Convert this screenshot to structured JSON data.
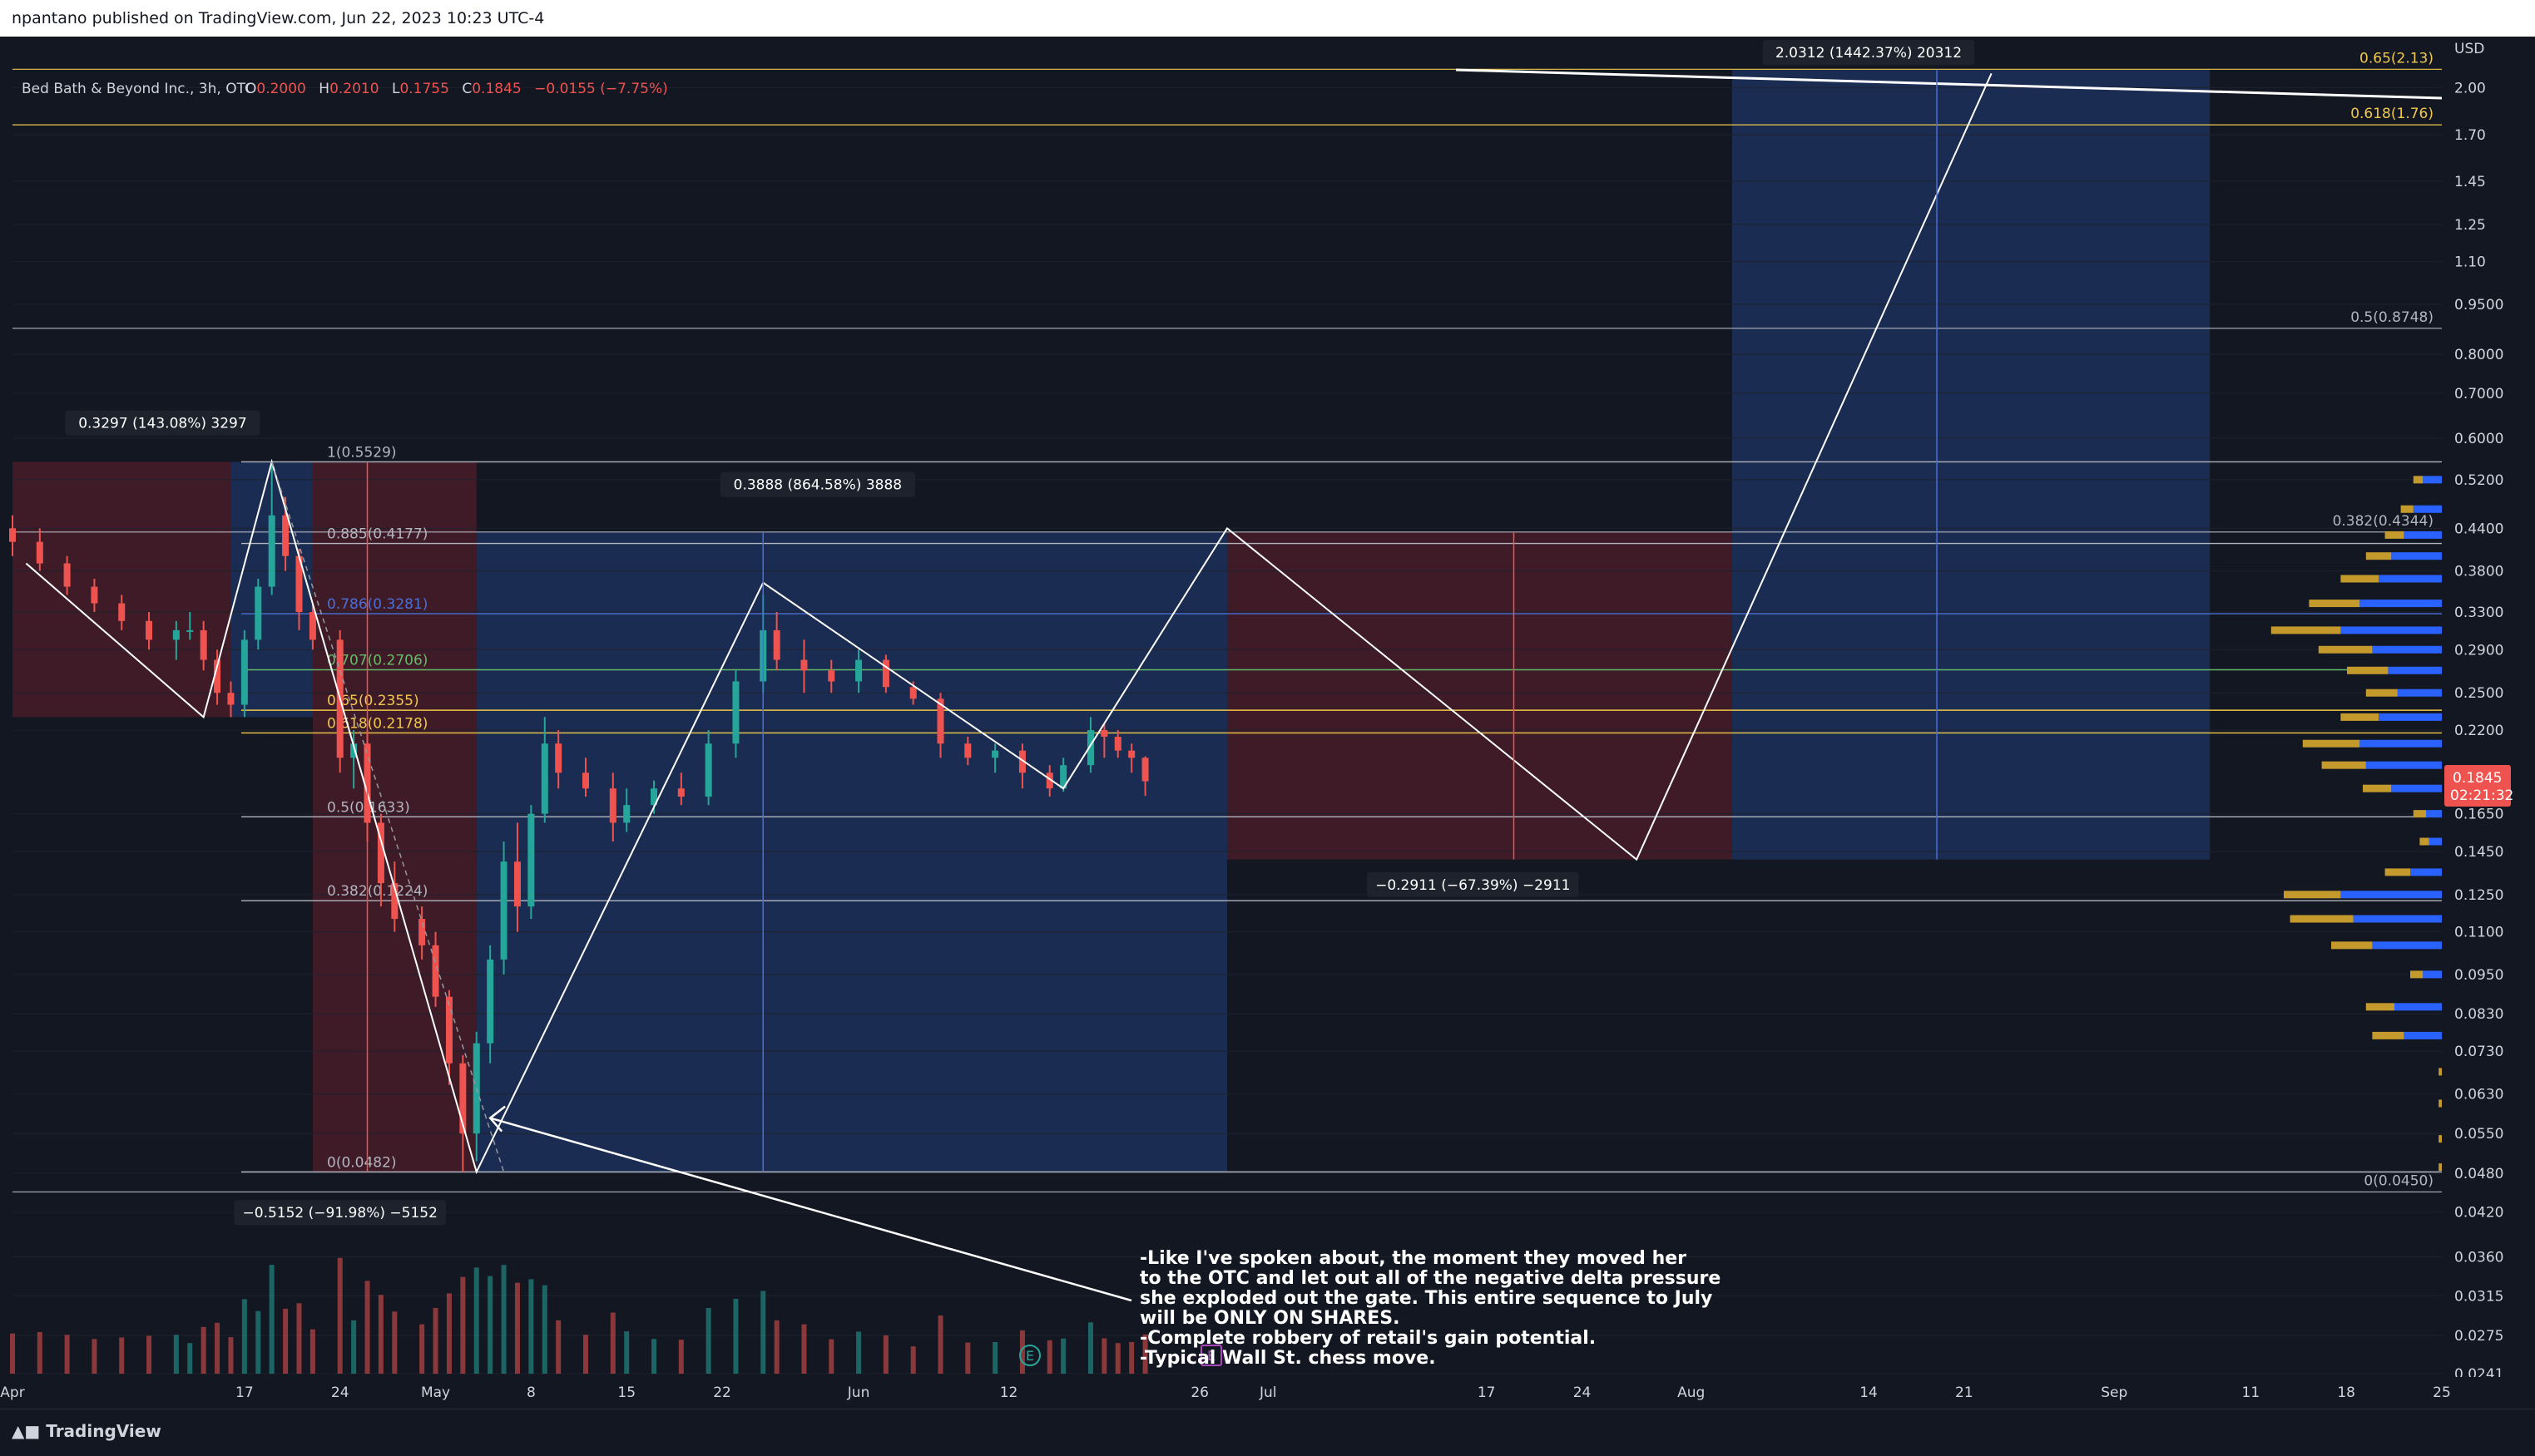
{
  "header": {
    "published": "npantano published on TradingView.com, Jun 22, 2023 10:23 UTC-4"
  },
  "legend": {
    "symbol": "Bed Bath & Beyond Inc., 3h, OTC",
    "o_label": "O",
    "o": "0.2000",
    "h_label": "H",
    "h": "0.2010",
    "l_label": "L",
    "l": "0.1755",
    "c_label": "C",
    "c": "0.1845",
    "change": "−0.0155 (−7.75%)"
  },
  "price_tag": {
    "value": "0.1845",
    "countdown": "02:21:32"
  },
  "footer": {
    "brand": "TradingView"
  },
  "colors": {
    "background": "#131722",
    "bull": "#26a69a",
    "bear": "#ef5350",
    "profit_zone": "#1e3a6e",
    "loss_zone": "#5a1f2a",
    "fib_yellow": "#f0c94a",
    "fib_blue": "#4a6fd6",
    "fib_green": "#66bb6a",
    "vp_blue": "#2962ff",
    "vp_gold": "#c49a2c"
  },
  "chart_data": {
    "type": "candlestick",
    "title": "Bed Bath & Beyond Inc., 3h, OTC",
    "currency": "USD",
    "yscale": "log",
    "ylim": [
      0.0241,
      2.2
    ],
    "x_tick_labels": [
      "Apr",
      "17",
      "24",
      "May",
      "8",
      "15",
      "22",
      "Jun",
      "12",
      "26",
      "Jul",
      "17",
      "24",
      "Aug",
      "14",
      "21",
      "Sep",
      "11",
      "18",
      "25"
    ],
    "y_tick_labels": [
      "2.00",
      "1.70",
      "1.45",
      "1.25",
      "1.10",
      "0.9500",
      "0.8000",
      "0.7000",
      "0.6000",
      "0.5200",
      "0.4400",
      "0.3800",
      "0.3300",
      "0.2900",
      "0.2500",
      "0.2200",
      "0.1650",
      "0.1450",
      "0.1250",
      "0.1100",
      "0.0950",
      "0.0830",
      "0.0730",
      "0.0630",
      "0.0550",
      "0.0480",
      "0.0420",
      "0.0360",
      "0.0315",
      "0.0275",
      "0.0241"
    ],
    "last_price": 0.1845,
    "fib_levels": [
      {
        "label": "1(0.5529)",
        "value": 0.5529
      },
      {
        "label": "0.885(0.4177)",
        "value": 0.4177
      },
      {
        "label": "0.786(0.3281)",
        "value": 0.3281
      },
      {
        "label": "0.707(0.2706)",
        "value": 0.2706
      },
      {
        "label": "0.65(0.2355)",
        "value": 0.2355
      },
      {
        "label": "0.618(0.2178)",
        "value": 0.2178
      },
      {
        "label": "0.5(0.1633)",
        "value": 0.1633
      },
      {
        "label": "0.382(0.1224)",
        "value": 0.1224
      },
      {
        "label": "0(0.0482)",
        "value": 0.0482
      }
    ],
    "right_fib_levels": [
      {
        "label": "0.65(2.13)",
        "value": 2.13
      },
      {
        "label": "0.618(1.76)",
        "value": 1.76
      },
      {
        "label": "0.5(0.8748)",
        "value": 0.8748
      },
      {
        "label": "0.382(0.4344)",
        "value": 0.4344
      },
      {
        "label": "0(0.0450)",
        "value": 0.045
      }
    ],
    "measurements": [
      "0.3297 (143.08%) 3297",
      "−0.5152 (−91.98%) −5152",
      "0.3888 (864.58%) 3888",
      "−0.2911 (−67.39%) −2911",
      "2.0312 (1442.37%) 20312"
    ],
    "projected_path": [
      {
        "date": "2023-04-01",
        "price": 0.39
      },
      {
        "date": "2023-04-14",
        "price": 0.23
      },
      {
        "date": "2023-04-19",
        "price": 0.553
      },
      {
        "date": "2023-05-04",
        "price": 0.0482
      },
      {
        "date": "2023-05-25",
        "price": 0.365
      },
      {
        "date": "2023-06-16",
        "price": 0.18
      },
      {
        "date": "2023-06-28",
        "price": 0.44
      },
      {
        "date": "2023-07-28",
        "price": 0.141
      },
      {
        "date": "2023-08-23",
        "price": 2.1
      }
    ],
    "candles": [
      {
        "date": "2023-03-31",
        "o": 0.44,
        "h": 0.46,
        "l": 0.4,
        "c": 0.42
      },
      {
        "date": "2023-04-02",
        "o": 0.42,
        "h": 0.44,
        "l": 0.38,
        "c": 0.39
      },
      {
        "date": "2023-04-04",
        "o": 0.39,
        "h": 0.4,
        "l": 0.35,
        "c": 0.36
      },
      {
        "date": "2023-04-06",
        "o": 0.36,
        "h": 0.37,
        "l": 0.33,
        "c": 0.34
      },
      {
        "date": "2023-04-08",
        "o": 0.34,
        "h": 0.35,
        "l": 0.31,
        "c": 0.32
      },
      {
        "date": "2023-04-10",
        "o": 0.32,
        "h": 0.33,
        "l": 0.29,
        "c": 0.3
      },
      {
        "date": "2023-04-12",
        "o": 0.3,
        "h": 0.32,
        "l": 0.28,
        "c": 0.31
      },
      {
        "date": "2023-04-13",
        "o": 0.31,
        "h": 0.33,
        "l": 0.3,
        "c": 0.31
      },
      {
        "date": "2023-04-14",
        "o": 0.31,
        "h": 0.32,
        "l": 0.27,
        "c": 0.28
      },
      {
        "date": "2023-04-15",
        "o": 0.28,
        "h": 0.29,
        "l": 0.24,
        "c": 0.25
      },
      {
        "date": "2023-04-16",
        "o": 0.25,
        "h": 0.26,
        "l": 0.23,
        "c": 0.24
      },
      {
        "date": "2023-04-17",
        "o": 0.24,
        "h": 0.31,
        "l": 0.23,
        "c": 0.3
      },
      {
        "date": "2023-04-18",
        "o": 0.3,
        "h": 0.37,
        "l": 0.29,
        "c": 0.36
      },
      {
        "date": "2023-04-19",
        "o": 0.36,
        "h": 0.5529,
        "l": 0.35,
        "c": 0.46
      },
      {
        "date": "2023-04-20",
        "o": 0.46,
        "h": 0.49,
        "l": 0.38,
        "c": 0.4
      },
      {
        "date": "2023-04-21",
        "o": 0.4,
        "h": 0.41,
        "l": 0.31,
        "c": 0.33
      },
      {
        "date": "2023-04-22",
        "o": 0.33,
        "h": 0.34,
        "l": 0.29,
        "c": 0.3
      },
      {
        "date": "2023-04-24",
        "o": 0.3,
        "h": 0.31,
        "l": 0.19,
        "c": 0.2
      },
      {
        "date": "2023-04-25",
        "o": 0.2,
        "h": 0.22,
        "l": 0.18,
        "c": 0.21
      },
      {
        "date": "2023-04-26",
        "o": 0.21,
        "h": 0.22,
        "l": 0.15,
        "c": 0.16
      },
      {
        "date": "2023-04-27",
        "o": 0.16,
        "h": 0.165,
        "l": 0.12,
        "c": 0.13
      },
      {
        "date": "2023-04-28",
        "o": 0.13,
        "h": 0.14,
        "l": 0.11,
        "c": 0.115
      },
      {
        "date": "2023-04-30",
        "o": 0.115,
        "h": 0.12,
        "l": 0.1,
        "c": 0.105
      },
      {
        "date": "2023-05-01",
        "o": 0.105,
        "h": 0.11,
        "l": 0.085,
        "c": 0.088
      },
      {
        "date": "2023-05-02",
        "o": 0.088,
        "h": 0.09,
        "l": 0.065,
        "c": 0.07
      },
      {
        "date": "2023-05-03",
        "o": 0.07,
        "h": 0.072,
        "l": 0.0482,
        "c": 0.055
      },
      {
        "date": "2023-05-04",
        "o": 0.055,
        "h": 0.078,
        "l": 0.05,
        "c": 0.075
      },
      {
        "date": "2023-05-05",
        "o": 0.075,
        "h": 0.105,
        "l": 0.07,
        "c": 0.1
      },
      {
        "date": "2023-05-06",
        "o": 0.1,
        "h": 0.15,
        "l": 0.095,
        "c": 0.14
      },
      {
        "date": "2023-05-07",
        "o": 0.14,
        "h": 0.16,
        "l": 0.11,
        "c": 0.12
      },
      {
        "date": "2023-05-08",
        "o": 0.12,
        "h": 0.17,
        "l": 0.115,
        "c": 0.165
      },
      {
        "date": "2023-05-09",
        "o": 0.165,
        "h": 0.23,
        "l": 0.16,
        "c": 0.21
      },
      {
        "date": "2023-05-10",
        "o": 0.21,
        "h": 0.22,
        "l": 0.18,
        "c": 0.19
      },
      {
        "date": "2023-05-12",
        "o": 0.19,
        "h": 0.2,
        "l": 0.175,
        "c": 0.18
      },
      {
        "date": "2023-05-14",
        "o": 0.18,
        "h": 0.19,
        "l": 0.15,
        "c": 0.16
      },
      {
        "date": "2023-05-15",
        "o": 0.16,
        "h": 0.18,
        "l": 0.155,
        "c": 0.17
      },
      {
        "date": "2023-05-17",
        "o": 0.17,
        "h": 0.185,
        "l": 0.165,
        "c": 0.18
      },
      {
        "date": "2023-05-19",
        "o": 0.18,
        "h": 0.19,
        "l": 0.17,
        "c": 0.175
      },
      {
        "date": "2023-05-21",
        "o": 0.175,
        "h": 0.22,
        "l": 0.17,
        "c": 0.21
      },
      {
        "date": "2023-05-23",
        "o": 0.21,
        "h": 0.27,
        "l": 0.2,
        "c": 0.26
      },
      {
        "date": "2023-05-25",
        "o": 0.26,
        "h": 0.35,
        "l": 0.25,
        "c": 0.31
      },
      {
        "date": "2023-05-26",
        "o": 0.31,
        "h": 0.33,
        "l": 0.27,
        "c": 0.28
      },
      {
        "date": "2023-05-28",
        "o": 0.28,
        "h": 0.3,
        "l": 0.25,
        "c": 0.27
      },
      {
        "date": "2023-05-30",
        "o": 0.27,
        "h": 0.28,
        "l": 0.25,
        "c": 0.26
      },
      {
        "date": "2023-06-01",
        "o": 0.26,
        "h": 0.29,
        "l": 0.25,
        "c": 0.28
      },
      {
        "date": "2023-06-03",
        "o": 0.28,
        "h": 0.285,
        "l": 0.25,
        "c": 0.255
      },
      {
        "date": "2023-06-05",
        "o": 0.255,
        "h": 0.26,
        "l": 0.24,
        "c": 0.245
      },
      {
        "date": "2023-06-07",
        "o": 0.245,
        "h": 0.25,
        "l": 0.2,
        "c": 0.21
      },
      {
        "date": "2023-06-09",
        "o": 0.21,
        "h": 0.215,
        "l": 0.195,
        "c": 0.2
      },
      {
        "date": "2023-06-11",
        "o": 0.2,
        "h": 0.21,
        "l": 0.19,
        "c": 0.205
      },
      {
        "date": "2023-06-13",
        "o": 0.205,
        "h": 0.21,
        "l": 0.18,
        "c": 0.19
      },
      {
        "date": "2023-06-15",
        "o": 0.19,
        "h": 0.195,
        "l": 0.175,
        "c": 0.18
      },
      {
        "date": "2023-06-16",
        "o": 0.18,
        "h": 0.2,
        "l": 0.178,
        "c": 0.195
      },
      {
        "date": "2023-06-18",
        "o": 0.195,
        "h": 0.23,
        "l": 0.19,
        "c": 0.22
      },
      {
        "date": "2023-06-19",
        "o": 0.22,
        "h": 0.225,
        "l": 0.2,
        "c": 0.215
      },
      {
        "date": "2023-06-20",
        "o": 0.215,
        "h": 0.22,
        "l": 0.2,
        "c": 0.205
      },
      {
        "date": "2023-06-21",
        "o": 0.205,
        "h": 0.21,
        "l": 0.19,
        "c": 0.2
      },
      {
        "date": "2023-06-22",
        "o": 0.2,
        "h": 0.201,
        "l": 0.1755,
        "c": 0.1845
      }
    ],
    "volume_profile": [
      {
        "price": 0.52,
        "up": 0.03,
        "down": 0.06
      },
      {
        "price": 0.47,
        "up": 0.04,
        "down": 0.09
      },
      {
        "price": 0.43,
        "up": 0.06,
        "down": 0.12
      },
      {
        "price": 0.4,
        "up": 0.08,
        "down": 0.16
      },
      {
        "price": 0.37,
        "up": 0.12,
        "down": 0.2
      },
      {
        "price": 0.34,
        "up": 0.16,
        "down": 0.26
      },
      {
        "price": 0.31,
        "up": 0.22,
        "down": 0.32
      },
      {
        "price": 0.29,
        "up": 0.17,
        "down": 0.22
      },
      {
        "price": 0.27,
        "up": 0.13,
        "down": 0.17
      },
      {
        "price": 0.25,
        "up": 0.1,
        "down": 0.14
      },
      {
        "price": 0.23,
        "up": 0.12,
        "down": 0.2
      },
      {
        "price": 0.21,
        "up": 0.18,
        "down": 0.26
      },
      {
        "price": 0.195,
        "up": 0.14,
        "down": 0.24
      },
      {
        "price": 0.18,
        "up": 0.09,
        "down": 0.16
      },
      {
        "price": 0.165,
        "up": 0.04,
        "down": 0.05
      },
      {
        "price": 0.15,
        "up": 0.03,
        "down": 0.04
      },
      {
        "price": 0.135,
        "up": 0.08,
        "down": 0.1
      },
      {
        "price": 0.125,
        "up": 0.18,
        "down": 0.32
      },
      {
        "price": 0.115,
        "up": 0.2,
        "down": 0.28
      },
      {
        "price": 0.105,
        "up": 0.13,
        "down": 0.22
      },
      {
        "price": 0.095,
        "up": 0.04,
        "down": 0.06
      },
      {
        "price": 0.085,
        "up": 0.09,
        "down": 0.15
      },
      {
        "price": 0.077,
        "up": 0.1,
        "down": 0.12
      },
      {
        "price": 0.068,
        "up": 0.01,
        "down": 0.0
      },
      {
        "price": 0.061,
        "up": 0.01,
        "down": 0.0
      },
      {
        "price": 0.054,
        "up": 0.01,
        "down": 0.0
      },
      {
        "price": 0.049,
        "up": 0.01,
        "down": 0.0
      }
    ],
    "events": [
      "E",
      "E"
    ],
    "annotation": [
      "-Like I've spoken about, the moment they moved her",
      "to the OTC and let out all of the negative delta pressure",
      "she exploded out the gate. This entire sequence to July",
      "will be ONLY ON SHARES.",
      "-Complete robbery of retail's gain potential.",
      "-Typical Wall St. chess move."
    ]
  }
}
